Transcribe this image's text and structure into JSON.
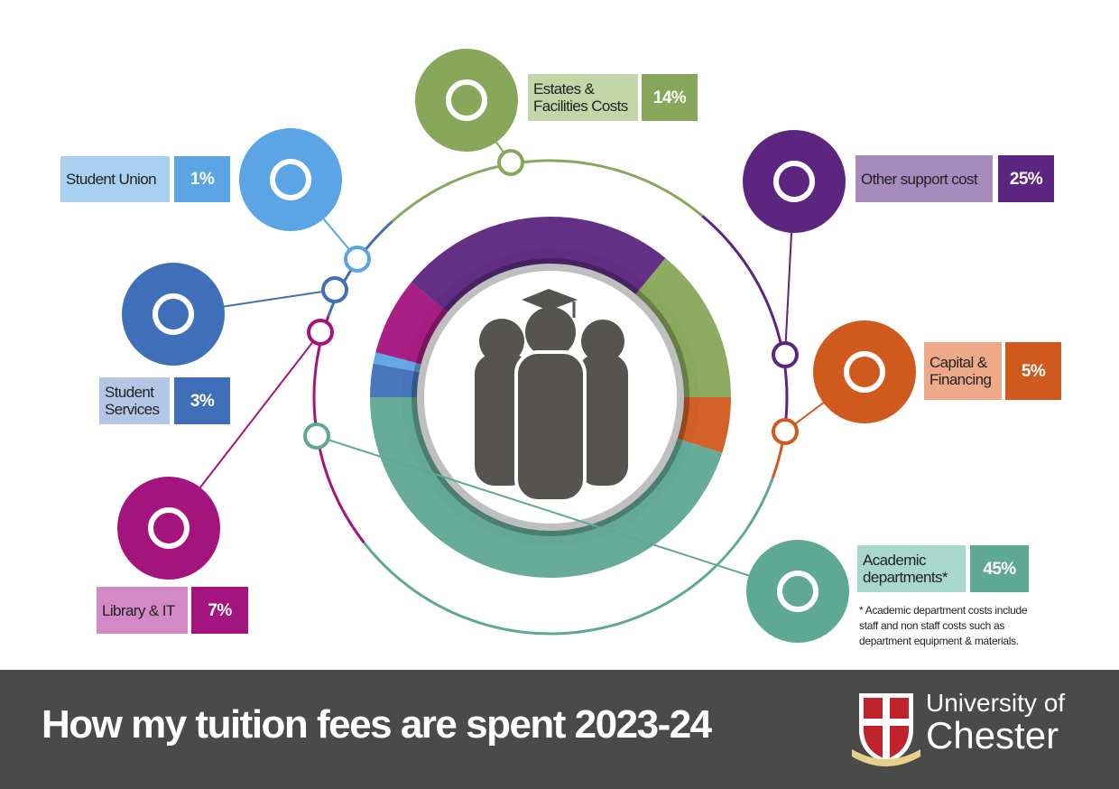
{
  "chart_data": {
    "type": "donut",
    "title": "How my tuition fees are spent 2023-24",
    "categories": [
      "Student Services",
      "Student Union",
      "Library & IT",
      "Other support cost",
      "Estates & Facilities Costs",
      "Capital & Financing",
      "Academic departments*"
    ],
    "values": [
      3,
      1,
      7,
      25,
      14,
      5,
      45
    ],
    "value_labels": [
      "3%",
      "1%",
      "7%",
      "25%",
      "14%",
      "5%",
      "45%"
    ],
    "colors": [
      "#3f6fb8",
      "#5ba4e5",
      "#a3147f",
      "#5c2580",
      "#87a85a",
      "#d05a1e",
      "#5ea894"
    ],
    "footnote": [
      "* Academic department costs include",
      "staff and non staff costs such as",
      "department equipment & materials."
    ],
    "logo": [
      "University of",
      "Chester"
    ]
  }
}
